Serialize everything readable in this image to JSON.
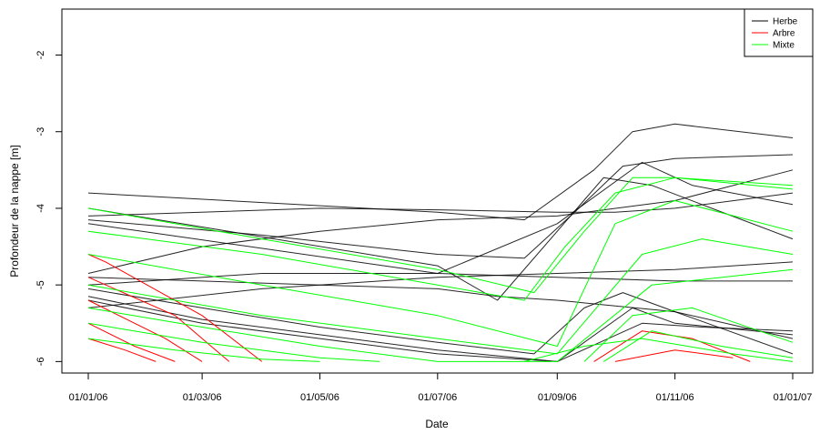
{
  "chart_data": {
    "type": "line",
    "title": "",
    "xlabel": "Date",
    "ylabel": "Profondeur de la nappe [m]",
    "x_type": "date",
    "xlim": [
      "2006-01-01",
      "2007-01-01"
    ],
    "ylim": [
      -6.15,
      -1.4
    ],
    "x_ticks": [
      {
        "date": "2006-01-01",
        "label": "01/01/06"
      },
      {
        "date": "2006-03-01",
        "label": "01/03/06"
      },
      {
        "date": "2006-05-01",
        "label": "01/05/06"
      },
      {
        "date": "2006-07-01",
        "label": "01/07/06"
      },
      {
        "date": "2006-09-01",
        "label": "01/09/06"
      },
      {
        "date": "2006-11-01",
        "label": "01/11/06"
      },
      {
        "date": "2007-01-01",
        "label": "01/01/07"
      }
    ],
    "y_ticks": [
      {
        "value": -6,
        "label": "-6"
      },
      {
        "value": -5,
        "label": "-5"
      },
      {
        "value": -4,
        "label": "-4"
      },
      {
        "value": -3,
        "label": "-3"
      },
      {
        "value": -2,
        "label": "-2"
      }
    ],
    "grid": false,
    "legend_position": "top-right",
    "legend": [
      {
        "label": "Herbe",
        "color": "#000000"
      },
      {
        "label": "Arbre",
        "color": "#ff0000"
      },
      {
        "label": "Mixte",
        "color": "#00ff00"
      }
    ],
    "groups": [
      {
        "label": "Herbe",
        "color": "#000000",
        "series": [
          {
            "x": [
              "2006-01-01",
              "2006-07-01",
              "2006-08-15",
              "2006-09-20",
              "2006-10-10",
              "2006-11-01",
              "2007-01-01"
            ],
            "y": [
              -3.8,
              -4.05,
              -4.15,
              -3.5,
              -3.0,
              -2.9,
              -3.08
            ]
          },
          {
            "x": [
              "2006-01-01",
              "2006-05-01",
              "2006-07-01",
              "2006-09-01",
              "2006-10-01",
              "2006-11-01",
              "2007-01-01"
            ],
            "y": [
              -4.1,
              -4.0,
              -4.02,
              -4.05,
              -4.05,
              -4.0,
              -3.8
            ]
          },
          {
            "x": [
              "2006-01-01",
              "2006-04-01",
              "2006-07-01",
              "2006-08-15",
              "2006-09-10",
              "2006-10-05",
              "2006-11-01",
              "2007-01-01"
            ],
            "y": [
              -4.15,
              -4.35,
              -4.6,
              -4.65,
              -4.05,
              -3.45,
              -3.35,
              -3.3
            ]
          },
          {
            "x": [
              "2006-01-01",
              "2006-03-01",
              "2006-05-01",
              "2006-07-01",
              "2006-09-01",
              "2006-11-01",
              "2007-01-01"
            ],
            "y": [
              -4.85,
              -4.5,
              -4.3,
              -4.15,
              -4.1,
              -3.9,
              -3.5
            ]
          },
          {
            "x": [
              "2006-01-01",
              "2006-04-01",
              "2006-07-01",
              "2006-09-01",
              "2006-11-01",
              "2007-01-01"
            ],
            "y": [
              -5.0,
              -4.85,
              -4.85,
              -4.9,
              -4.95,
              -4.95
            ]
          },
          {
            "x": [
              "2006-01-01",
              "2006-04-01",
              "2006-07-01",
              "2006-09-01",
              "2006-11-01",
              "2007-01-01"
            ],
            "y": [
              -5.3,
              -5.05,
              -4.9,
              -4.85,
              -4.8,
              -4.7
            ]
          },
          {
            "x": [
              "2006-01-01",
              "2006-03-01",
              "2006-05-01",
              "2006-07-01",
              "2006-08-01",
              "2006-09-01",
              "2006-11-01",
              "2007-01-01"
            ],
            "y": [
              -4.9,
              -4.95,
              -5.0,
              -5.05,
              -5.15,
              -5.2,
              -5.35,
              -5.7
            ]
          },
          {
            "x": [
              "2006-01-01",
              "2006-03-01",
              "2006-05-01",
              "2006-07-01",
              "2006-08-20",
              "2006-09-15",
              "2006-10-05",
              "2006-11-01",
              "2007-01-01"
            ],
            "y": [
              -5.05,
              -5.3,
              -5.55,
              -5.75,
              -5.9,
              -5.3,
              -5.1,
              -5.35,
              -5.9
            ]
          },
          {
            "x": [
              "2006-01-01",
              "2006-03-01",
              "2006-05-01",
              "2006-07-01",
              "2006-09-01",
              "2006-10-10",
              "2006-11-01",
              "2007-01-01"
            ],
            "y": [
              -5.15,
              -5.45,
              -5.65,
              -5.85,
              -6.0,
              -5.3,
              -5.5,
              -5.65
            ]
          },
          {
            "x": [
              "2006-01-01",
              "2006-03-01",
              "2006-05-01",
              "2006-07-01",
              "2006-09-01",
              "2006-10-15",
              "2006-11-15",
              "2007-01-01"
            ],
            "y": [
              -5.2,
              -5.5,
              -5.7,
              -5.9,
              -6.0,
              -5.5,
              -5.55,
              -5.6
            ]
          },
          {
            "x": [
              "2006-01-01",
              "2006-07-01",
              "2006-08-01",
              "2006-09-01",
              "2006-09-25",
              "2006-10-20",
              "2006-11-20",
              "2007-01-01"
            ],
            "y": [
              -4.0,
              -4.75,
              -5.2,
              -4.3,
              -3.6,
              -3.7,
              -4.0,
              -4.4
            ]
          },
          {
            "x": [
              "2006-01-01",
              "2006-07-01",
              "2006-09-01",
              "2006-10-15",
              "2006-11-10",
              "2007-01-01"
            ],
            "y": [
              -4.2,
              -4.85,
              -4.2,
              -3.4,
              -3.7,
              -3.95
            ]
          }
        ]
      },
      {
        "label": "Arbre",
        "color": "#ff0000",
        "series": [
          {
            "x": [
              "2006-01-01",
              "2006-01-10",
              "2006-03-01",
              "2006-04-01"
            ],
            "y": [
              -4.6,
              -4.7,
              -5.4,
              -6.0
            ]
          },
          {
            "x": [
              "2006-01-01",
              "2006-02-15",
              "2006-03-15"
            ],
            "y": [
              -4.9,
              -5.4,
              -6.0
            ]
          },
          {
            "x": [
              "2006-01-01",
              "2006-02-10",
              "2006-03-01"
            ],
            "y": [
              -5.2,
              -5.7,
              -6.0
            ]
          },
          {
            "x": [
              "2006-01-01",
              "2006-01-25",
              "2006-02-15"
            ],
            "y": [
              -5.5,
              -5.8,
              -6.0
            ]
          },
          {
            "x": [
              "2006-01-01",
              "2006-01-20",
              "2006-02-05"
            ],
            "y": [
              -5.7,
              -5.85,
              -6.0
            ]
          },
          {
            "x": [
              "2006-09-20",
              "2006-10-15",
              "2006-11-10",
              "2006-12-10"
            ],
            "y": [
              -6.0,
              -5.6,
              -5.7,
              -6.0
            ]
          },
          {
            "x": [
              "2006-10-01",
              "2006-11-01",
              "2006-12-01"
            ],
            "y": [
              -6.0,
              -5.85,
              -5.95
            ]
          }
        ]
      },
      {
        "label": "Mixte",
        "color": "#00ff00",
        "series": [
          {
            "x": [
              "2006-01-01",
              "2006-04-01",
              "2006-07-01",
              "2006-08-20",
              "2006-09-15",
              "2006-10-10",
              "2006-11-01",
              "2007-01-01"
            ],
            "y": [
              -4.0,
              -4.4,
              -4.8,
              -5.1,
              -4.3,
              -3.6,
              -3.6,
              -3.7
            ]
          },
          {
            "x": [
              "2006-01-01",
              "2006-04-01",
              "2006-07-01",
              "2006-08-15",
              "2006-09-05",
              "2006-10-01",
              "2006-11-01",
              "2007-01-01"
            ],
            "y": [
              -4.3,
              -4.6,
              -5.0,
              -5.2,
              -4.5,
              -3.8,
              -3.6,
              -3.75
            ]
          },
          {
            "x": [
              "2006-01-01",
              "2006-04-01",
              "2006-07-01",
              "2006-09-01",
              "2006-10-01",
              "2006-11-01",
              "2007-01-01"
            ],
            "y": [
              -4.6,
              -5.0,
              -5.4,
              -5.8,
              -4.2,
              -3.9,
              -4.3
            ]
          },
          {
            "x": [
              "2006-01-01",
              "2006-04-01",
              "2006-07-01",
              "2006-09-01",
              "2006-10-15",
              "2006-11-15",
              "2007-01-01"
            ],
            "y": [
              -5.0,
              -5.4,
              -5.7,
              -5.9,
              -4.6,
              -4.4,
              -4.6
            ]
          },
          {
            "x": [
              "2006-01-01",
              "2006-03-01",
              "2006-05-01",
              "2006-07-01",
              "2006-09-01",
              "2006-10-20",
              "2007-01-01"
            ],
            "y": [
              -5.3,
              -5.55,
              -5.8,
              -6.0,
              -6.0,
              -5.0,
              -4.8
            ]
          },
          {
            "x": [
              "2006-01-01",
              "2006-03-01",
              "2006-05-01",
              "2006-06-01"
            ],
            "y": [
              -5.5,
              -5.75,
              -5.95,
              -6.0
            ]
          },
          {
            "x": [
              "2006-01-01",
              "2006-02-15",
              "2006-04-01",
              "2006-05-01"
            ],
            "y": [
              -5.7,
              -5.85,
              -5.97,
              -6.0
            ]
          },
          {
            "x": [
              "2006-09-15",
              "2006-10-10",
              "2006-11-10",
              "2007-01-01"
            ],
            "y": [
              -6.0,
              -5.4,
              -5.3,
              -5.75
            ]
          },
          {
            "x": [
              "2006-09-25",
              "2006-10-20",
              "2006-11-25",
              "2007-01-01"
            ],
            "y": [
              -6.0,
              -5.6,
              -5.8,
              -5.95
            ]
          },
          {
            "x": [
              "2006-08-15",
              "2006-09-15",
              "2006-10-15",
              "2006-12-01",
              "2007-01-01"
            ],
            "y": [
              -6.0,
              -5.8,
              -5.7,
              -5.9,
              -6.0
            ]
          }
        ]
      }
    ]
  }
}
